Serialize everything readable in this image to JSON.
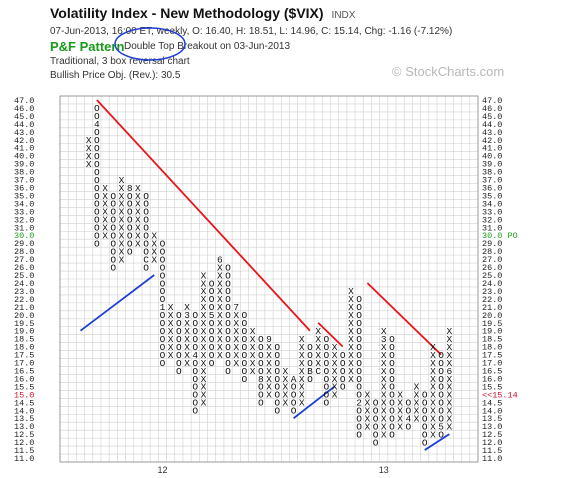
{
  "header": {
    "title": "Volatility Index - New Methodology ($VIX)",
    "exchange": "INDX",
    "stats": "07-Jun-2013, 16:00 ET, weekly, O: 16.40, H: 18.51, L: 14.96, C: 15.14, Chg: -1.16 (-7.12%)",
    "pattern_title": "P&F Pattern",
    "pattern_signal": "Double Top Breakout on 03-Jun-2013",
    "chart_type": "Traditional, 3 box reversal chart",
    "price_objective": "Bullish Price Obj. (Rev.): 30.5",
    "watermark": "© StockCharts.com"
  },
  "chart_data": {
    "type": "point-and-figure",
    "reversal": 3,
    "box_scale": "traditional",
    "ylim": [
      11.0,
      47.0
    ],
    "y_ticks": [
      "47.0",
      "46.0",
      "45.0",
      "44.0",
      "43.0",
      "42.0",
      "41.0",
      "40.0",
      "39.0",
      "38.0",
      "37.0",
      "36.0",
      "35.0",
      "34.0",
      "33.0",
      "32.0",
      "31.0",
      "30.0",
      "29.0",
      "28.0",
      "27.0",
      "26.0",
      "25.0",
      "24.0",
      "23.0",
      "22.0",
      "21.0",
      "20.0",
      "19.5",
      "19.0",
      "18.5",
      "18.0",
      "17.5",
      "17.0",
      "16.5",
      "16.0",
      "15.5",
      "15.0",
      "14.5",
      "14.0",
      "13.5",
      "13.0",
      "12.5",
      "12.0",
      "11.5",
      "11.0"
    ],
    "highlight_level": "30.0",
    "highlight_label": "30.0 PO",
    "current_level": "15.0",
    "current_label": "<<15.14",
    "x_labels": [
      {
        "column": 9,
        "label": "12"
      },
      {
        "column": 36,
        "label": "13"
      }
    ],
    "columns": [
      {
        "type": "X",
        "low": "39.0",
        "high": "42.0"
      },
      {
        "type": "O",
        "low": "29.0",
        "high": "46.0",
        "marks": [
          {
            "level": "44.0",
            "label": "4"
          }
        ]
      },
      {
        "type": "X",
        "low": "30.0",
        "high": "36.0"
      },
      {
        "type": "O",
        "low": "26.0",
        "high": "35.0"
      },
      {
        "type": "X",
        "low": "27.0",
        "high": "37.0"
      },
      {
        "type": "O",
        "low": "28.0",
        "high": "36.0",
        "marks": [
          {
            "level": "36.0",
            "label": "8"
          }
        ]
      },
      {
        "type": "X",
        "low": "29.0",
        "high": "36.0"
      },
      {
        "type": "O",
        "low": "26.0",
        "high": "35.0",
        "marks": [
          {
            "level": "27.0",
            "label": "C"
          }
        ]
      },
      {
        "type": "X",
        "low": "27.0",
        "high": "30.0"
      },
      {
        "type": "O",
        "low": "17.0",
        "high": "29.0",
        "marks": [
          {
            "level": "21.0",
            "label": "1"
          }
        ]
      },
      {
        "type": "X",
        "low": "17.5",
        "high": "21.0"
      },
      {
        "type": "O",
        "low": "16.5",
        "high": "20.0"
      },
      {
        "type": "X",
        "low": "17.0",
        "high": "21.0",
        "marks": [
          {
            "level": "20.0",
            "label": "3"
          }
        ]
      },
      {
        "type": "O",
        "low": "14.0",
        "high": "20.0",
        "marks": [
          {
            "level": "17.5",
            "label": "4"
          }
        ]
      },
      {
        "type": "X",
        "low": "14.5",
        "high": "25.0"
      },
      {
        "type": "O",
        "low": "17.0",
        "high": "24.0",
        "marks": [
          {
            "level": "20.0",
            "label": "5"
          }
        ]
      },
      {
        "type": "X",
        "low": "17.5",
        "high": "27.0",
        "marks": [
          {
            "level": "27.0",
            "label": "6"
          }
        ]
      },
      {
        "type": "O",
        "low": "16.5",
        "high": "26.0"
      },
      {
        "type": "X",
        "low": "17.0",
        "high": "21.0",
        "marks": [
          {
            "level": "21.0",
            "label": "7"
          }
        ]
      },
      {
        "type": "O",
        "low": "16.0",
        "high": "20.0"
      },
      {
        "type": "X",
        "low": "16.5",
        "high": "19.0"
      },
      {
        "type": "O",
        "low": "14.5",
        "high": "18.5",
        "marks": [
          {
            "level": "16.0",
            "label": "8"
          }
        ]
      },
      {
        "type": "X",
        "low": "15.0",
        "high": "18.5",
        "marks": [
          {
            "level": "18.5",
            "label": "9"
          }
        ]
      },
      {
        "type": "O",
        "low": "14.0",
        "high": "18.0"
      },
      {
        "type": "X",
        "low": "14.5",
        "high": "16.5"
      },
      {
        "type": "O",
        "low": "14.0",
        "high": "16.0",
        "marks": [
          {
            "level": "16.0",
            "label": "A"
          }
        ]
      },
      {
        "type": "X",
        "low": "14.5",
        "high": "18.5"
      },
      {
        "type": "O",
        "low": "16.0",
        "high": "18.0",
        "marks": [
          {
            "level": "16.5",
            "label": "B"
          }
        ]
      },
      {
        "type": "X",
        "low": "16.5",
        "high": "19.0",
        "marks": [
          {
            "level": "16.5",
            "label": "C"
          }
        ]
      },
      {
        "type": "O",
        "low": "14.5",
        "high": "18.5"
      },
      {
        "type": "X",
        "low": "15.0",
        "high": "18.0"
      },
      {
        "type": "O",
        "low": "15.5",
        "high": "17.5"
      },
      {
        "type": "X",
        "low": "16.0",
        "high": "23.0"
      },
      {
        "type": "O",
        "low": "12.5",
        "high": "22.0",
        "marks": [
          {
            "level": "14.5",
            "label": "2"
          }
        ]
      },
      {
        "type": "X",
        "low": "13.0",
        "high": "15.0"
      },
      {
        "type": "O",
        "low": "12.0",
        "high": "14.5"
      },
      {
        "type": "X",
        "low": "12.5",
        "high": "19.0",
        "marks": [
          {
            "level": "18.5",
            "label": "3"
          }
        ]
      },
      {
        "type": "O",
        "low": "12.5",
        "high": "18.5"
      },
      {
        "type": "X",
        "low": "13.0",
        "high": "15.0"
      },
      {
        "type": "O",
        "low": "13.0",
        "high": "14.5",
        "marks": [
          {
            "level": "13.5",
            "label": "4"
          }
        ]
      },
      {
        "type": "X",
        "low": "13.5",
        "high": "15.5"
      },
      {
        "type": "O",
        "low": "12.0",
        "high": "15.0"
      },
      {
        "type": "X",
        "low": "12.5",
        "high": "18.0"
      },
      {
        "type": "O",
        "low": "12.5",
        "high": "17.5",
        "marks": [
          {
            "level": "13.0",
            "label": "5"
          }
        ]
      },
      {
        "type": "X",
        "low": "13.0",
        "high": "19.0",
        "marks": [
          {
            "level": "16.5",
            "label": "6"
          }
        ],
        "green_from": "17.5"
      }
    ],
    "trend_lines": [
      {
        "kind": "bearish-resistance",
        "color": "#e8141a",
        "from": {
          "column": 1,
          "level": "47.0"
        },
        "to": {
          "column": 27,
          "level": "19.0"
        }
      },
      {
        "kind": "bearish-resistance",
        "color": "#e8141a",
        "from": {
          "column": 28,
          "level": "19.5"
        },
        "to": {
          "column": 31,
          "level": "18.0"
        }
      },
      {
        "kind": "bearish-resistance",
        "color": "#e8141a",
        "from": {
          "column": 34,
          "level": "24.0"
        },
        "to": {
          "column": 43,
          "level": "17.5"
        }
      },
      {
        "kind": "bullish-support",
        "color": "#1f3fd6",
        "from": {
          "column": -1,
          "level": "19.0"
        },
        "to": {
          "column": 8,
          "level": "25.0"
        }
      },
      {
        "kind": "bullish-support",
        "color": "#1f3fd6",
        "from": {
          "column": 25,
          "level": "13.5"
        },
        "to": {
          "column": 30,
          "level": "15.5"
        }
      },
      {
        "kind": "bullish-support",
        "color": "#1f3fd6",
        "from": {
          "column": 41,
          "level": "11.5"
        },
        "to": {
          "column": 44,
          "level": "12.5"
        }
      }
    ]
  }
}
